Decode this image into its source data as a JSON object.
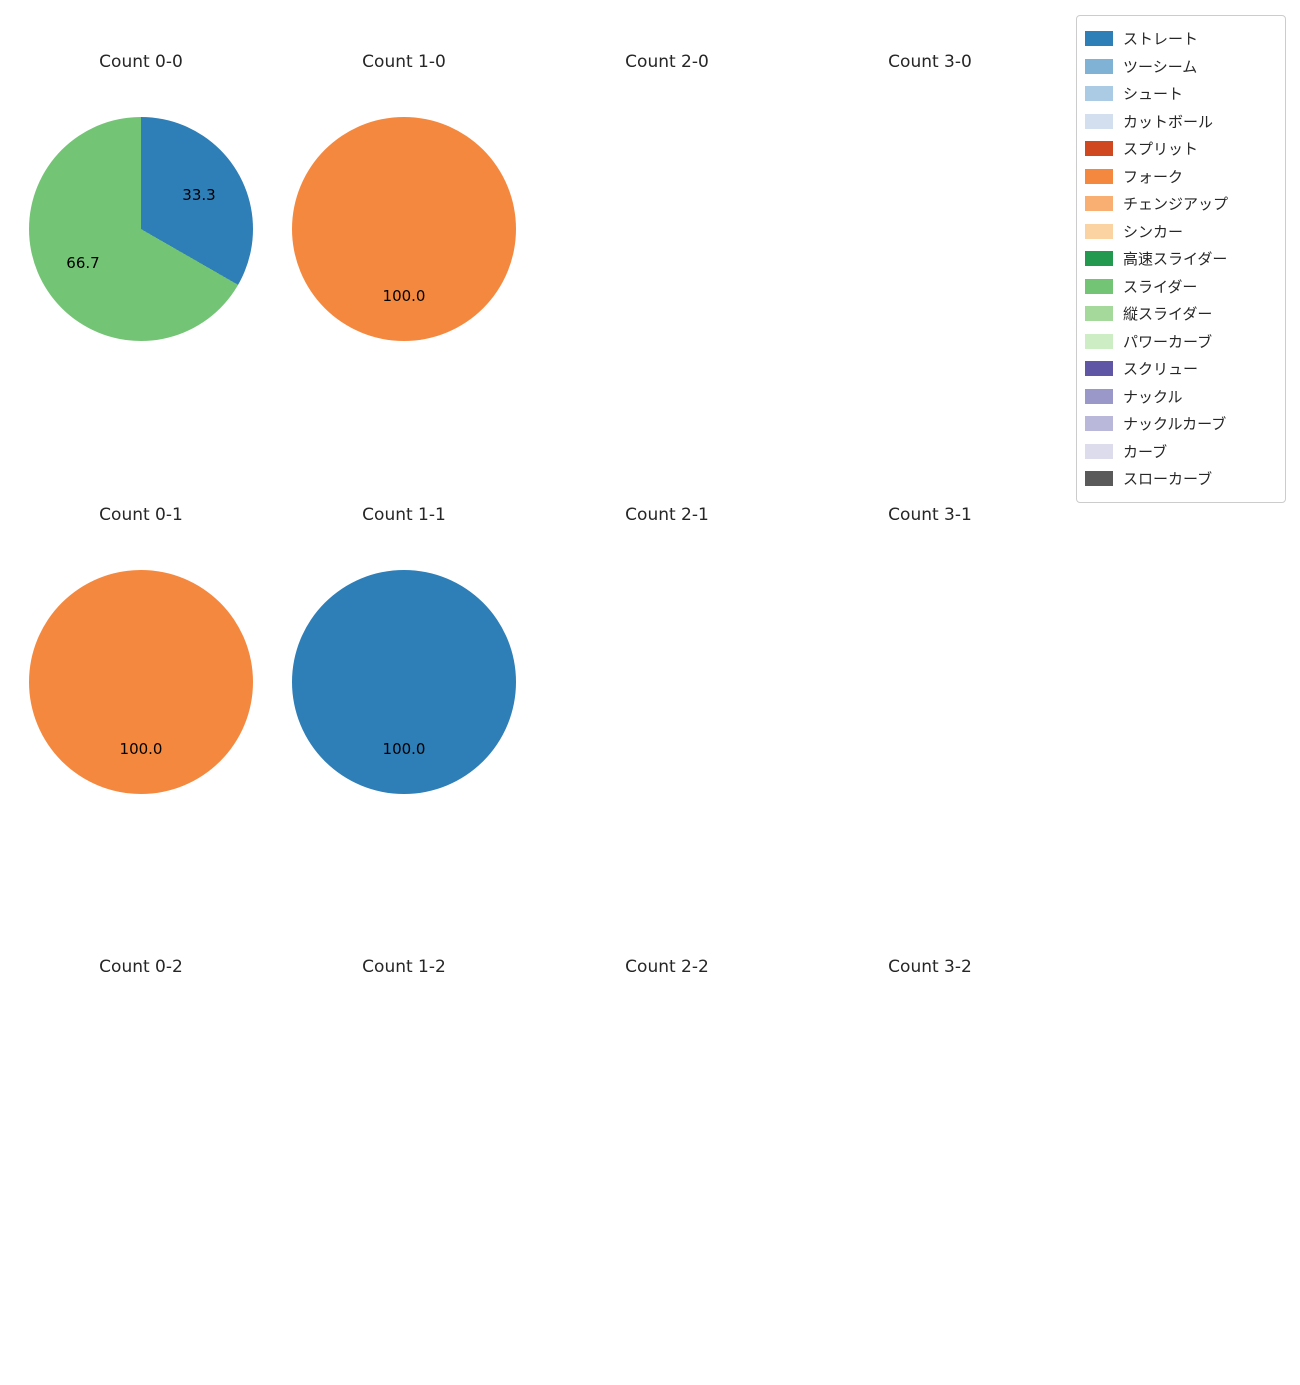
{
  "page": {
    "background": "#ffffff"
  },
  "legend": {
    "items": [
      {
        "label": "ストレート",
        "color": "#2e7eb8"
      },
      {
        "label": "ツーシーム",
        "color": "#7fb2d5"
      },
      {
        "label": "シュート",
        "color": "#abcbe4"
      },
      {
        "label": "カットボール",
        "color": "#d3dfee"
      },
      {
        "label": "スプリット",
        "color": "#d0481f"
      },
      {
        "label": "フォーク",
        "color": "#f5883f"
      },
      {
        "label": "チェンジアップ",
        "color": "#f9af72"
      },
      {
        "label": "シンカー",
        "color": "#fbd3a3"
      },
      {
        "label": "高速スライダー",
        "color": "#23994f"
      },
      {
        "label": "スライダー",
        "color": "#74c476"
      },
      {
        "label": "縦スライダー",
        "color": "#a5d99c"
      },
      {
        "label": "パワーカーブ",
        "color": "#cdedc5"
      },
      {
        "label": "スクリュー",
        "color": "#5f57a5"
      },
      {
        "label": "ナックル",
        "color": "#9a98c8"
      },
      {
        "label": "ナックルカーブ",
        "color": "#b9b8da"
      },
      {
        "label": "カーブ",
        "color": "#dddcec"
      },
      {
        "label": "スローカーブ",
        "color": "#5a5a5a"
      }
    ]
  },
  "chart_data": [
    {
      "type": "pie",
      "title": "Count 0-0",
      "start_angle_deg": 0,
      "direction": "clockwise",
      "slices": [
        {
          "label": "ストレート",
          "value": 33.3
        },
        {
          "label": "スライダー",
          "value": 66.7
        }
      ]
    },
    {
      "type": "pie",
      "title": "Count 1-0",
      "start_angle_deg": 0,
      "direction": "clockwise",
      "slices": [
        {
          "label": "フォーク",
          "value": 100.0
        }
      ]
    },
    {
      "type": "pie",
      "title": "Count 2-0",
      "slices": []
    },
    {
      "type": "pie",
      "title": "Count 3-0",
      "slices": []
    },
    {
      "type": "pie",
      "title": "Count 0-1",
      "start_angle_deg": 0,
      "direction": "clockwise",
      "slices": [
        {
          "label": "フォーク",
          "value": 100.0
        }
      ]
    },
    {
      "type": "pie",
      "title": "Count 1-1",
      "start_angle_deg": 0,
      "direction": "clockwise",
      "slices": [
        {
          "label": "ストレート",
          "value": 100.0
        }
      ]
    },
    {
      "type": "pie",
      "title": "Count 2-1",
      "slices": []
    },
    {
      "type": "pie",
      "title": "Count 3-1",
      "slices": []
    },
    {
      "type": "pie",
      "title": "Count 0-2",
      "slices": []
    },
    {
      "type": "pie",
      "title": "Count 1-2",
      "slices": []
    },
    {
      "type": "pie",
      "title": "Count 2-2",
      "slices": []
    },
    {
      "type": "pie",
      "title": "Count 3-2",
      "slices": []
    }
  ]
}
